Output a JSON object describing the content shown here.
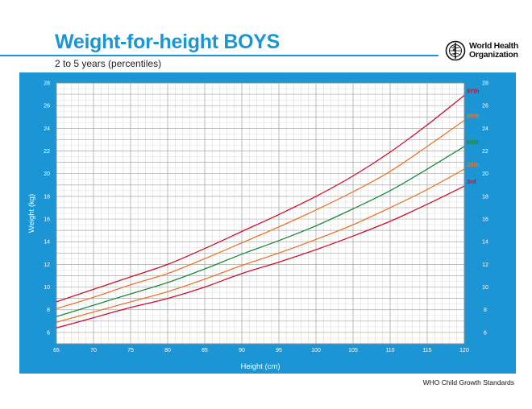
{
  "header": {
    "title": "Weight-for-height BOYS",
    "subtitle": "2 to 5 years (percentiles)"
  },
  "logo": {
    "line1": "World Health",
    "line2": "Organization",
    "emblem_icon": "who-emblem-icon"
  },
  "footer": {
    "source": "WHO Child Growth Standards"
  },
  "colors": {
    "brand_blue": "#1b95d4",
    "grid_minor": "#d6d6d6",
    "grid_major": "#a8a8a8",
    "p3": "#c8102e",
    "p15": "#e8772e",
    "p50": "#1a8a3c",
    "p85": "#e8772e",
    "p97": "#c8102e"
  },
  "chart_data": {
    "type": "line",
    "title": "Weight-for-height BOYS",
    "subtitle": "2 to 5 years (percentiles)",
    "xlabel": "Height (cm)",
    "ylabel": "Weight (kg)",
    "xlim": [
      65,
      120
    ],
    "ylim": [
      5,
      28
    ],
    "x_ticks": [
      65,
      70,
      75,
      80,
      85,
      90,
      95,
      100,
      105,
      110,
      115,
      120
    ],
    "y_ticks": [
      6,
      8,
      10,
      12,
      14,
      16,
      18,
      20,
      22,
      24,
      26,
      28
    ],
    "y_ticks_both_sides": true,
    "grid": true,
    "legend": "inline labels at right end of curves",
    "x": [
      65,
      70,
      75,
      80,
      85,
      90,
      95,
      100,
      105,
      110,
      115,
      120
    ],
    "series": [
      {
        "name": "3rd",
        "color_key": "p3",
        "values": [
          6.4,
          7.3,
          8.2,
          9.0,
          10.0,
          11.2,
          12.2,
          13.3,
          14.5,
          15.8,
          17.3,
          18.9
        ]
      },
      {
        "name": "15th",
        "color_key": "p15",
        "values": [
          6.9,
          7.8,
          8.7,
          9.6,
          10.7,
          11.9,
          13.0,
          14.2,
          15.5,
          17.0,
          18.6,
          20.4
        ]
      },
      {
        "name": "50th",
        "color_key": "p50",
        "values": [
          7.4,
          8.4,
          9.4,
          10.4,
          11.6,
          12.9,
          14.1,
          15.4,
          16.9,
          18.5,
          20.4,
          22.4
        ]
      },
      {
        "name": "85th",
        "color_key": "p85",
        "values": [
          8.1,
          9.1,
          10.2,
          11.2,
          12.5,
          13.9,
          15.3,
          16.8,
          18.4,
          20.2,
          22.4,
          24.7
        ]
      },
      {
        "name": "97th",
        "color_key": "p97",
        "values": [
          8.7,
          9.8,
          10.9,
          12.0,
          13.4,
          14.9,
          16.4,
          18.0,
          19.8,
          21.9,
          24.3,
          26.9
        ]
      }
    ]
  }
}
